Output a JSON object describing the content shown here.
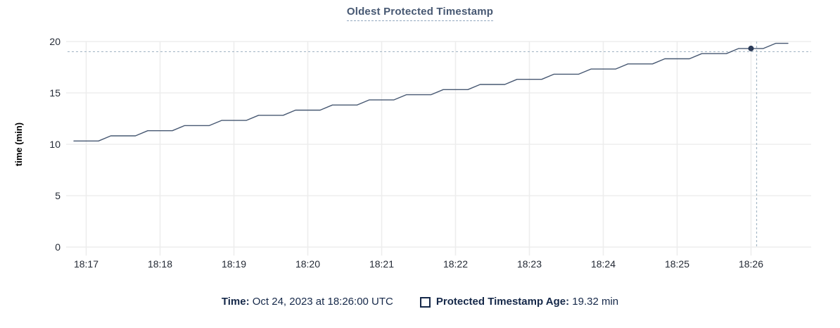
{
  "title": "Oldest Protected Timestamp",
  "chart_data": {
    "type": "line",
    "title": "Oldest Protected Timestamp",
    "xlabel": "",
    "ylabel": "time (min)",
    "ylim": [
      0,
      20
    ],
    "y_ticks": [
      0,
      5,
      10,
      15,
      20
    ],
    "x_ticks": [
      "18:17",
      "18:18",
      "18:19",
      "18:20",
      "18:21",
      "18:22",
      "18:23",
      "18:24",
      "18:25",
      "18:26"
    ],
    "grid": true,
    "legend_position": "bottom",
    "series": [
      {
        "name": "Protected Timestamp Age",
        "start_time": "18:16:50",
        "interval_seconds": 10,
        "values": [
          10.32,
          10.32,
          10.32,
          10.82,
          10.82,
          10.82,
          11.32,
          11.32,
          11.32,
          11.82,
          11.82,
          11.82,
          12.32,
          12.32,
          12.32,
          12.82,
          12.82,
          12.82,
          13.32,
          13.32,
          13.32,
          13.82,
          13.82,
          13.82,
          14.32,
          14.32,
          14.32,
          14.82,
          14.82,
          14.82,
          15.32,
          15.32,
          15.32,
          15.82,
          15.82,
          15.82,
          16.32,
          16.32,
          16.32,
          16.82,
          16.82,
          16.82,
          17.32,
          17.32,
          17.32,
          17.82,
          17.82,
          17.82,
          18.32,
          18.32,
          18.32,
          18.82,
          18.82,
          18.82,
          19.32,
          19.32,
          19.32,
          19.82,
          19.82
        ]
      }
    ],
    "highlight": {
      "time": "18:26:00",
      "value": 19.32
    }
  },
  "legend": {
    "time_label": "Time:",
    "time_value": "Oct 24, 2023 at 18:26:00 UTC",
    "series_label": "Protected Timestamp Age:",
    "series_value": "19.32 min",
    "checkbox_icon": "checkbox-unchecked-icon"
  },
  "colors": {
    "title_text": "#475872",
    "title_underline": "#93a8c0",
    "legend_text": "#152849",
    "axis_text": "#242a35",
    "line": "#475872",
    "dot": "#2b3a57",
    "crosshair": "#a6b8c6",
    "grid": "#ededed"
  }
}
